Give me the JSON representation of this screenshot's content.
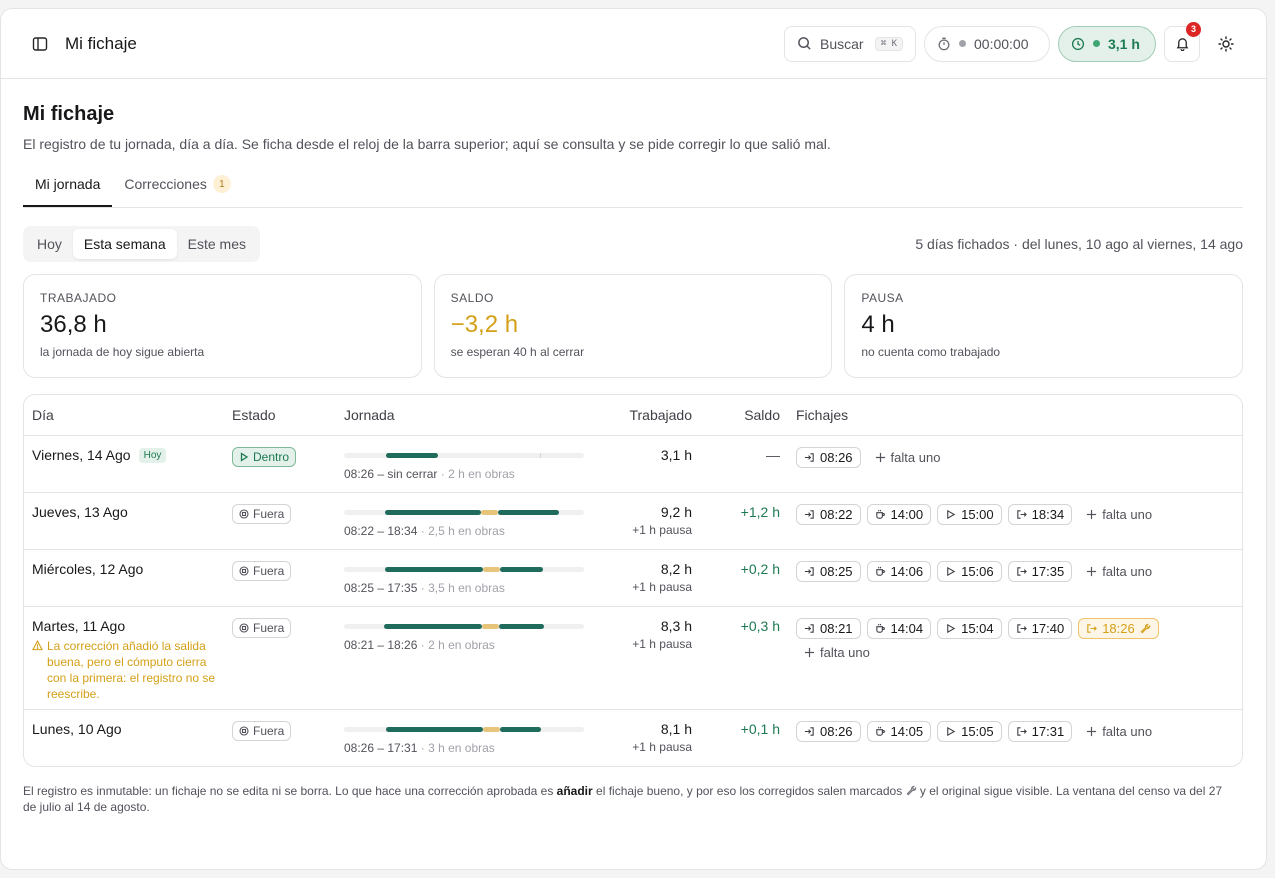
{
  "header": {
    "title": "Mi fichaje",
    "search": {
      "label": "Buscar",
      "shortcut": "⌘ K"
    },
    "timer": {
      "value": "00:00:00"
    },
    "clock": {
      "value": "3,1 h"
    },
    "notifications": {
      "count": "3"
    }
  },
  "page": {
    "title": "Mi fichaje",
    "subtitle": "El registro de tu jornada, día a día. Se ficha desde el reloj de la barra superior; aquí se consulta y se pide corregir lo que salió mal."
  },
  "tabs": [
    {
      "label": "Mi jornada",
      "active": true
    },
    {
      "label": "Correcciones",
      "count": "1"
    }
  ],
  "filter": {
    "options": [
      "Hoy",
      "Esta semana",
      "Este mes"
    ],
    "selected": "Esta semana",
    "range_text": "5 días fichados · del lunes, 10 ago al viernes, 14 ago"
  },
  "cards": [
    {
      "label": "TRABAJADO",
      "value": "36,8 h",
      "note": "la jornada de hoy sigue abierta"
    },
    {
      "label": "SALDO",
      "value": "−3,2 h",
      "note": "se esperan 40 h al cerrar"
    },
    {
      "label": "PAUSA",
      "value": "4 h",
      "note": "no cuenta como trabajado"
    }
  ],
  "table": {
    "headers": {
      "dia": "Día",
      "estado": "Estado",
      "jornada": "Jornada",
      "trabajado": "Trabajado",
      "saldo": "Saldo",
      "fichajes": "Fichajes"
    },
    "rows": [
      {
        "day": "Viernes, 14 Ago",
        "badge": "Hoy",
        "status": "Dentro",
        "range": "08:26 – sin cerrar",
        "obras": "2 h en obras",
        "worked": "3,1 h",
        "pause": "",
        "balance": "—",
        "punches": [
          "08:26"
        ],
        "missing": "falta uno"
      },
      {
        "day": "Jueves, 13 Ago",
        "status": "Fuera",
        "range": "08:22 – 18:34",
        "obras": "2,5 h en obras",
        "worked": "9,2 h",
        "pause": "+1 h pausa",
        "balance": "+1,2 h",
        "punches": [
          "08:22",
          "14:00",
          "15:00",
          "18:34"
        ],
        "missing": "falta uno"
      },
      {
        "day": "Miércoles, 12 Ago",
        "status": "Fuera",
        "range": "08:25 – 17:35",
        "obras": "3,5 h en obras",
        "worked": "8,2 h",
        "pause": "+1 h pausa",
        "balance": "+0,2 h",
        "punches": [
          "08:25",
          "14:06",
          "15:06",
          "17:35"
        ],
        "missing": "falta uno"
      },
      {
        "day": "Martes, 11 Ago",
        "status": "Fuera",
        "warning": "La corrección añadió la salida buena, pero el cómputo cierra con la primera: el registro no se reescribe.",
        "range": "08:21 – 18:26",
        "obras": "2 h en obras",
        "worked": "8,3 h",
        "pause": "+1 h pausa",
        "balance": "+0,3 h",
        "punches": [
          "08:21",
          "14:04",
          "15:04",
          "17:40",
          "18:26"
        ],
        "missing": "falta uno"
      },
      {
        "day": "Lunes, 10 Ago",
        "status": "Fuera",
        "range": "08:26 – 17:31",
        "obras": "3 h en obras",
        "worked": "8,1 h",
        "pause": "+1 h pausa",
        "balance": "+0,1 h",
        "punches": [
          "08:26",
          "14:05",
          "15:05",
          "17:31"
        ],
        "missing": "falta uno"
      }
    ]
  },
  "footer": {
    "part1": "El registro es inmutable: un fichaje no se edita ni se borra. Lo que hace una corrección aprobada es ",
    "bold": "añadir",
    "part2": " el fichaje bueno, y por eso los corregidos salen marcados",
    "part3": " y el original sigue visible. La ventana del censo va del 27 de julio al 14 de agosto."
  },
  "colors": {
    "work": "#1f6b5c",
    "pause": "#e6c57a",
    "accent_green": "#1d7a52",
    "amber": "#d4a017"
  }
}
